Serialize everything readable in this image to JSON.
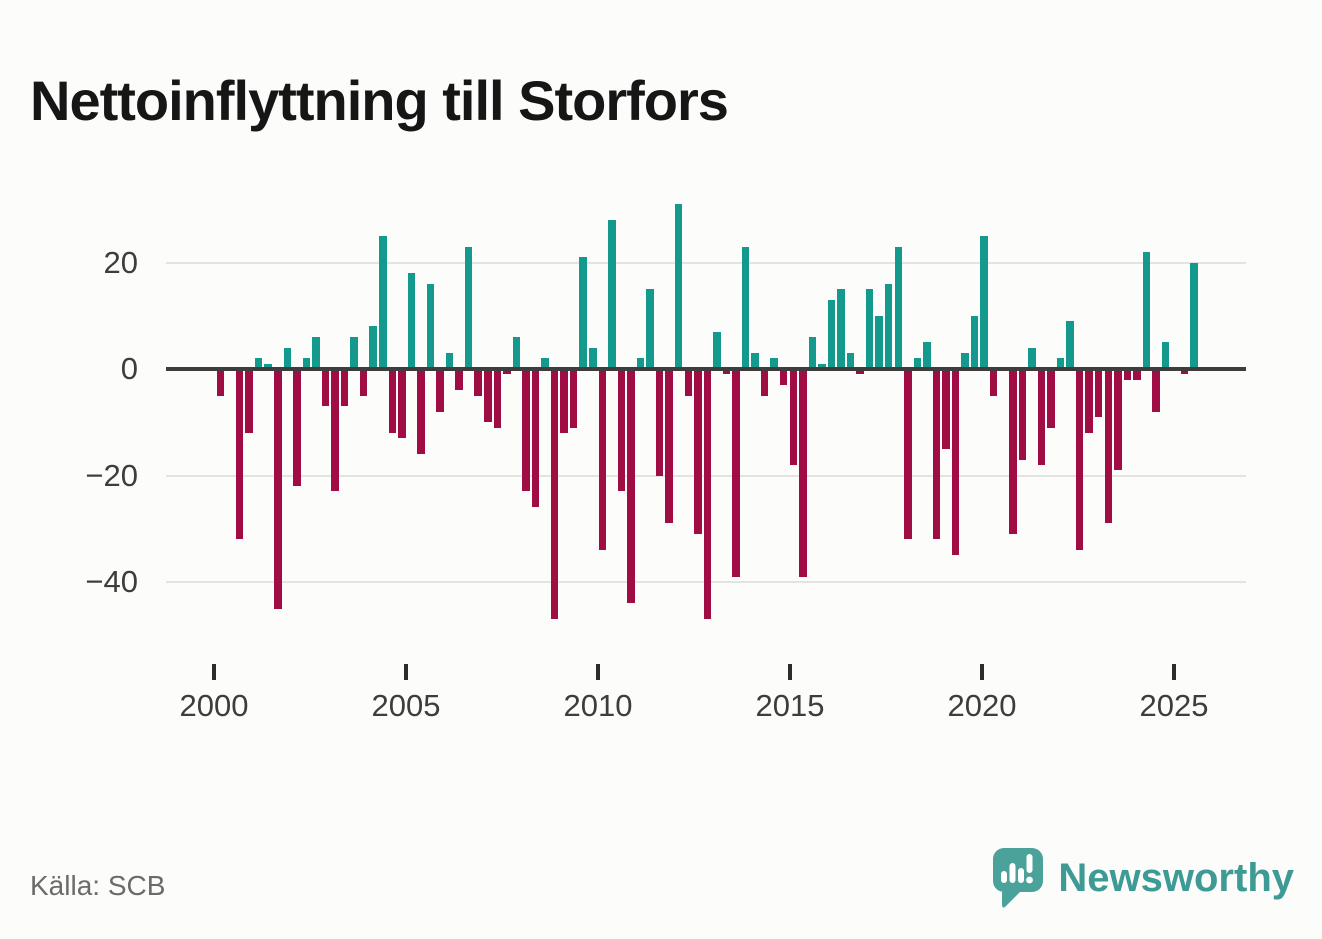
{
  "title": "Nettoinflyttning till Storfors",
  "source": "Källa: SCB",
  "brand": {
    "name": "Newsworthy",
    "icon": "speech-bubble-bar-chart-icon",
    "icon_color": "#4ba29b",
    "text_color": "#3d9a94"
  },
  "colors": {
    "positive": "#149a8d",
    "negative": "#9f0d44",
    "gridline": "#e3e3e2",
    "zero_line": "#3d3d3d",
    "axis_text": "#3d3d3d",
    "background": "#fcfcfa"
  },
  "chart_data": {
    "type": "bar",
    "title": "Nettoinflyttning till Storfors",
    "xlabel": "",
    "ylabel": "",
    "frequency": "quarterly",
    "x_start": "2000K1",
    "x_end": "2025K3",
    "x_tick_labels": [
      "2000",
      "2005",
      "2010",
      "2015",
      "2020",
      "2025"
    ],
    "y_ticks": [
      20,
      0,
      -20,
      -40
    ],
    "y_tick_labels": [
      "20",
      "0",
      "−20",
      "−40"
    ],
    "ylim": [
      -50,
      32
    ],
    "grid": "horizontal",
    "legend": "none",
    "positive_color": "#149a8d",
    "negative_color": "#9f0d44",
    "quarterly_values_by_year": [
      {
        "year": 2000,
        "values": [
          -5,
          0,
          -32,
          -12
        ]
      },
      {
        "year": 2001,
        "values": [
          2,
          1,
          -45,
          4
        ]
      },
      {
        "year": 2002,
        "values": [
          -22,
          2,
          6,
          -7
        ]
      },
      {
        "year": 2003,
        "values": [
          -23,
          -7,
          6,
          -5
        ]
      },
      {
        "year": 2004,
        "values": [
          8,
          25,
          -12,
          -13
        ]
      },
      {
        "year": 2005,
        "values": [
          18,
          -16,
          16,
          -8
        ]
      },
      {
        "year": 2006,
        "values": [
          3,
          -4,
          23,
          -5
        ]
      },
      {
        "year": 2007,
        "values": [
          -10,
          -11,
          -1,
          6
        ]
      },
      {
        "year": 2008,
        "values": [
          -23,
          -26,
          2,
          -47
        ]
      },
      {
        "year": 2009,
        "values": [
          -12,
          -11,
          21,
          4
        ]
      },
      {
        "year": 2010,
        "values": [
          -34,
          28,
          -23,
          -44
        ]
      },
      {
        "year": 2011,
        "values": [
          2,
          15,
          -20,
          -29
        ]
      },
      {
        "year": 2012,
        "values": [
          31,
          -5,
          -31,
          -47
        ]
      },
      {
        "year": 2013,
        "values": [
          7,
          -1,
          -39,
          23
        ]
      },
      {
        "year": 2014,
        "values": [
          3,
          -5,
          2,
          -3
        ]
      },
      {
        "year": 2015,
        "values": [
          -18,
          -39,
          6,
          1
        ]
      },
      {
        "year": 2016,
        "values": [
          13,
          15,
          3,
          -1
        ]
      },
      {
        "year": 2017,
        "values": [
          15,
          10,
          16,
          23
        ]
      },
      {
        "year": 2018,
        "values": [
          -32,
          2,
          5,
          -32
        ]
      },
      {
        "year": 2019,
        "values": [
          -15,
          -35,
          3,
          10
        ]
      },
      {
        "year": 2020,
        "values": [
          25,
          -5,
          0,
          -31
        ]
      },
      {
        "year": 2021,
        "values": [
          -17,
          4,
          -18,
          -11
        ]
      },
      {
        "year": 2022,
        "values": [
          2,
          9,
          -34,
          -12
        ]
      },
      {
        "year": 2023,
        "values": [
          -9,
          -29,
          -19,
          -2
        ]
      },
      {
        "year": 2024,
        "values": [
          -2,
          22,
          -8,
          5
        ]
      },
      {
        "year": 2025,
        "values": [
          0,
          -1,
          20
        ]
      }
    ]
  }
}
